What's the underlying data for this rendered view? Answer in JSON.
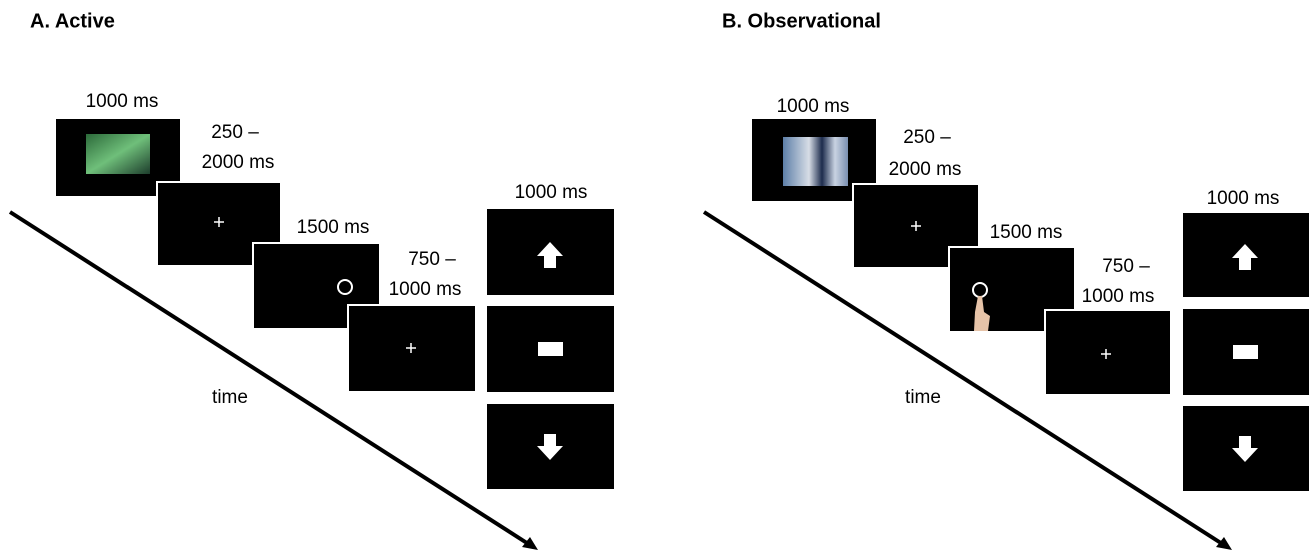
{
  "panels": [
    {
      "title": "A. Active",
      "steps": [
        {
          "duration": [
            "1000 ms"
          ]
        },
        {
          "duration": [
            "250 –",
            "2000 ms"
          ]
        },
        {
          "duration": [
            "1500 ms"
          ]
        },
        {
          "duration": [
            "750 –",
            "1000 ms"
          ]
        }
      ],
      "feedback_duration": "1000 ms",
      "time_label": "time"
    },
    {
      "title": "B. Observational",
      "steps": [
        {
          "duration": [
            "1000 ms"
          ]
        },
        {
          "duration": [
            "250 –",
            "2000 ms"
          ]
        },
        {
          "duration": [
            "1500 ms"
          ]
        },
        {
          "duration": [
            "750 –",
            "1000 ms"
          ]
        }
      ],
      "feedback_duration": "1000 ms",
      "time_label": "time"
    }
  ]
}
